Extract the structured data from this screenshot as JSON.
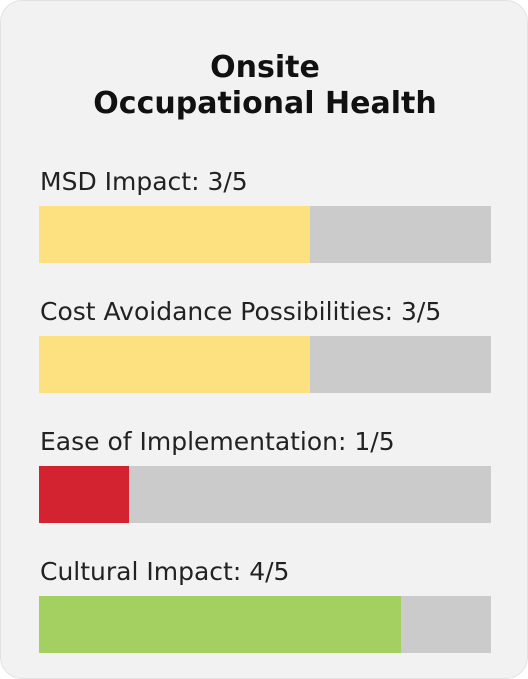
{
  "card": {
    "title_line1": "Onsite",
    "title_line2": "Occupational Health"
  },
  "metrics": [
    {
      "label": "MSD Impact: 3/5",
      "score": 3,
      "max": 5,
      "color": "#fde07f"
    },
    {
      "label": "Cost Avoidance Possibilities: 3/5",
      "score": 3,
      "max": 5,
      "color": "#fde07f"
    },
    {
      "label": "Ease of Implementation: 1/5",
      "score": 1,
      "max": 5,
      "color": "#d42330"
    },
    {
      "label": "Cultural Impact: 4/5",
      "score": 4,
      "max": 5,
      "color": "#a4d062"
    }
  ],
  "colors": {
    "track": "#cbcbcb",
    "card_background": "#f2f2f2"
  }
}
